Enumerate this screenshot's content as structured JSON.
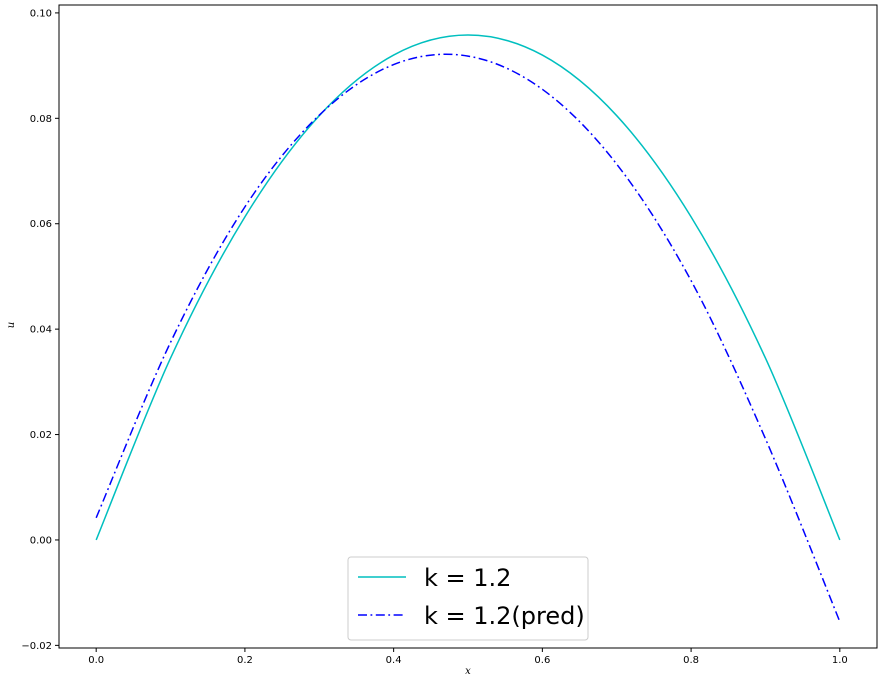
{
  "chart_data": {
    "type": "line",
    "xlabel": "x",
    "ylabel": "u",
    "xlim": [
      -0.05,
      1.05
    ],
    "ylim": [
      -0.0205,
      0.1015
    ],
    "xticks": [
      0.0,
      0.2,
      0.4,
      0.6,
      0.8,
      1.0
    ],
    "xtick_labels": [
      "0.0",
      "0.2",
      "0.4",
      "0.6",
      "0.8",
      "1.0"
    ],
    "yticks": [
      -0.02,
      0.0,
      0.02,
      0.04,
      0.06,
      0.08,
      0.1
    ],
    "ytick_labels": [
      "−0.02",
      "0.00",
      "0.02",
      "0.04",
      "0.06",
      "0.08",
      "0.10"
    ],
    "grid": false,
    "legend": {
      "location": "lower center"
    },
    "series": [
      {
        "name": "k = 1.2",
        "color": "#00bfbf",
        "style": "solid",
        "x": [
          0.0,
          0.1,
          0.2,
          0.3,
          0.4,
          0.5,
          0.6,
          0.7,
          0.8,
          0.9,
          1.0
        ],
        "y": [
          0.0,
          0.0345,
          0.0613,
          0.0805,
          0.092,
          0.0958,
          0.092,
          0.0805,
          0.0613,
          0.0345,
          0.0
        ]
      },
      {
        "name": "k = 1.2(pred)",
        "color": "#0000ff",
        "style": "dashdot",
        "x": [
          0.0,
          0.1,
          0.2,
          0.3,
          0.4,
          0.5,
          0.6,
          0.7,
          0.8,
          0.9,
          1.0
        ],
        "y": [
          0.0042,
          0.0375,
          0.0632,
          0.0806,
          0.0902,
          0.0918,
          0.0855,
          0.0713,
          0.0492,
          0.0192,
          -0.0155
        ]
      }
    ]
  }
}
